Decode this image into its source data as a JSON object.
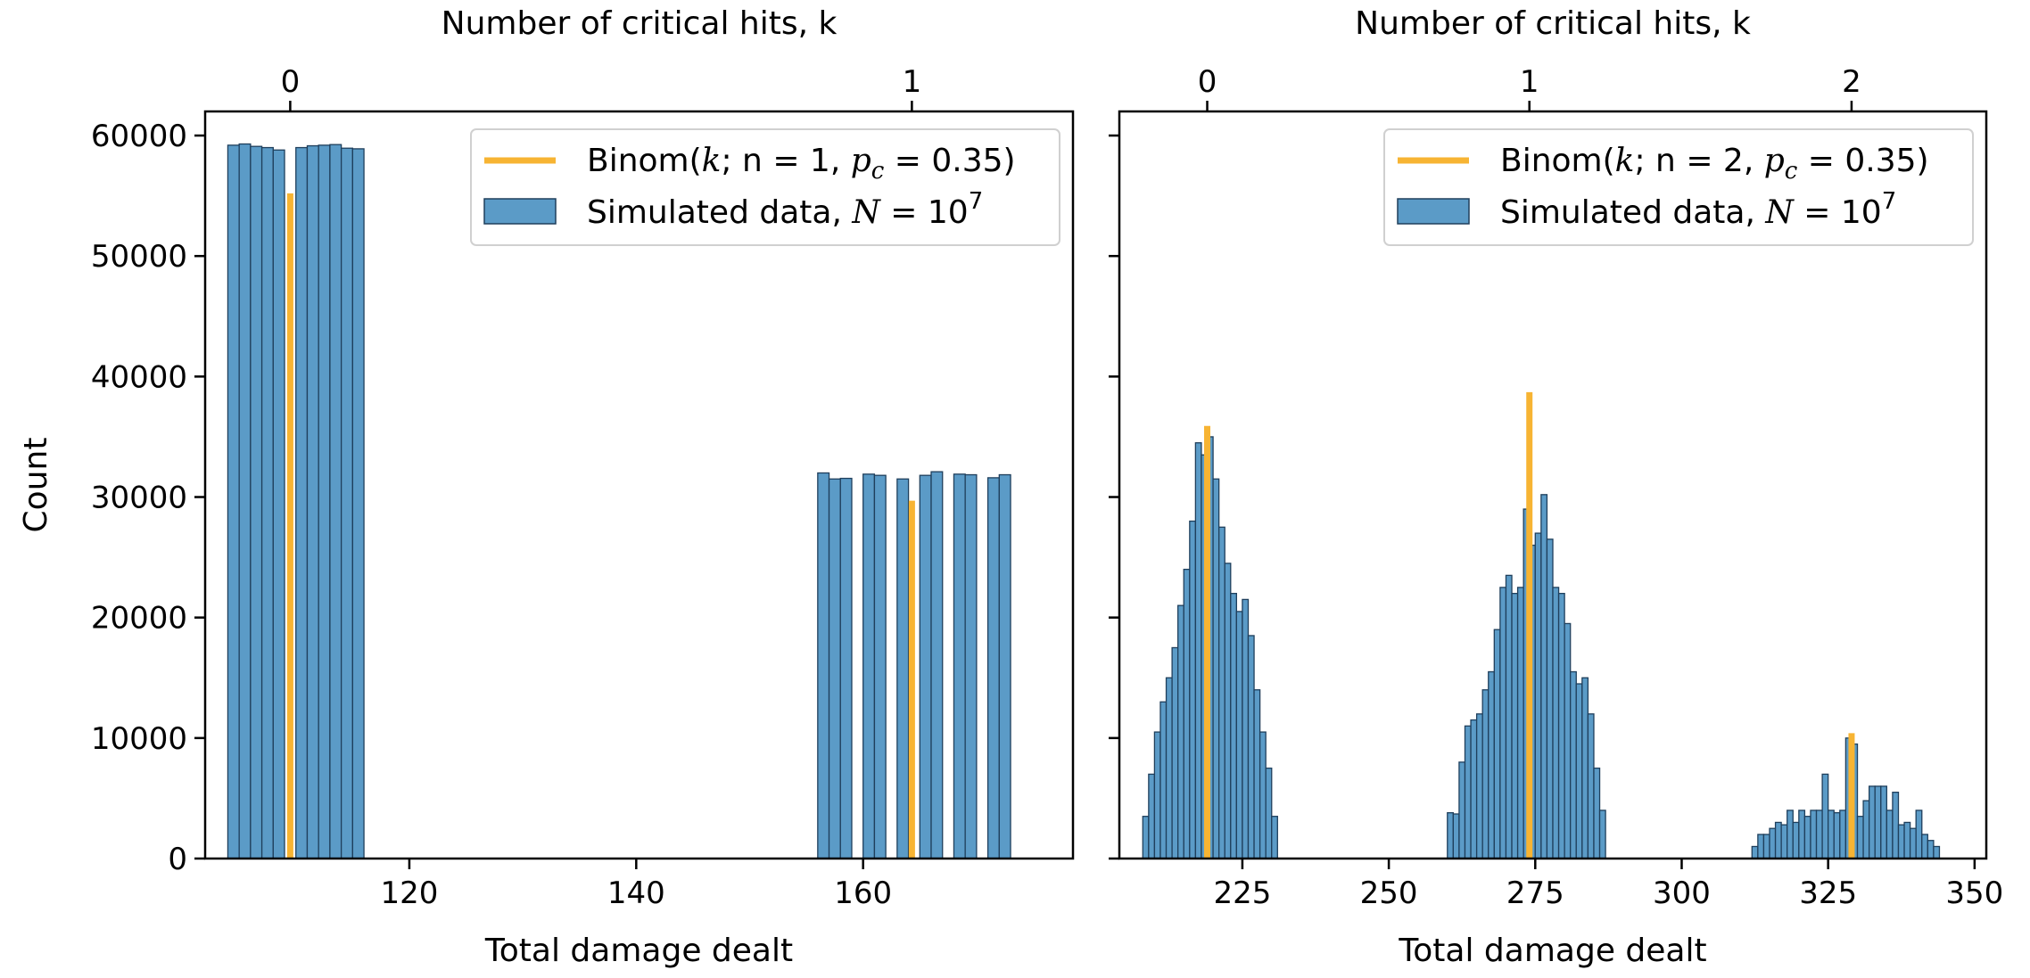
{
  "colors": {
    "hist": "#5b9bc7",
    "hist_edge": "#1f3f5c",
    "binom": "#f7b433",
    "axis": "#000000"
  },
  "chart_data": [
    {
      "type": "bar",
      "panel": "left",
      "xlabel": "Total damage dealt",
      "ylabel": "Count",
      "top_xlabel": "Number of critical hits, k",
      "xlim": [
        102,
        178.5
      ],
      "ylim": [
        0,
        62000
      ],
      "xticks": [
        120,
        140,
        160
      ],
      "yticks": [
        0,
        10000,
        20000,
        30000,
        40000,
        50000,
        60000
      ],
      "top_xticks": [
        {
          "value": 109.5,
          "label": "0"
        },
        {
          "value": 164.3,
          "label": "1"
        }
      ],
      "legend": {
        "position": "upper right",
        "binom_label": {
          "prefix": "Binom(",
          "k": "k",
          "n_part": "; n = 1, ",
          "p": "p",
          "sub": "c",
          "suffix": " = 0.35)"
        },
        "sim_label": {
          "prefix": "Simulated data, ",
          "N": "N",
          "eq": " = 10",
          "sup": "7"
        }
      },
      "bin_width": 1,
      "series": [
        {
          "name": "Simulated data",
          "bins": [
            {
              "x": 104.0,
              "y": 59200
            },
            {
              "x": 105.0,
              "y": 59300
            },
            {
              "x": 106.0,
              "y": 59100
            },
            {
              "x": 107.0,
              "y": 59000
            },
            {
              "x": 108.0,
              "y": 58800
            },
            {
              "x": 110.0,
              "y": 59000
            },
            {
              "x": 111.0,
              "y": 59150
            },
            {
              "x": 112.0,
              "y": 59200
            },
            {
              "x": 113.0,
              "y": 59250
            },
            {
              "x": 114.0,
              "y": 58950
            },
            {
              "x": 115.0,
              "y": 58900
            },
            {
              "x": 156.0,
              "y": 32000
            },
            {
              "x": 157.0,
              "y": 31500
            },
            {
              "x": 158.0,
              "y": 31550
            },
            {
              "x": 160.0,
              "y": 31900
            },
            {
              "x": 161.0,
              "y": 31800
            },
            {
              "x": 163.0,
              "y": 31500
            },
            {
              "x": 165.0,
              "y": 31800
            },
            {
              "x": 166.0,
              "y": 32100
            },
            {
              "x": 168.0,
              "y": 31900
            },
            {
              "x": 169.0,
              "y": 31850
            },
            {
              "x": 171.0,
              "y": 31600
            },
            {
              "x": 172.0,
              "y": 31850
            }
          ]
        },
        {
          "name": "Binom",
          "lines": [
            {
              "x": 109.5,
              "y": 55200
            },
            {
              "x": 164.3,
              "y": 29700
            }
          ]
        }
      ]
    },
    {
      "type": "bar",
      "panel": "right",
      "xlabel": "Total damage dealt",
      "top_xlabel": "Number of critical hits, k",
      "xlim": [
        204,
        352
      ],
      "ylim": [
        0,
        62000
      ],
      "xticks": [
        225,
        250,
        275,
        300,
        325,
        350
      ],
      "yticks": [
        0,
        10000,
        20000,
        30000,
        40000,
        50000,
        60000
      ],
      "top_xticks": [
        {
          "value": 219,
          "label": "0"
        },
        {
          "value": 274,
          "label": "1"
        },
        {
          "value": 329,
          "label": "2"
        }
      ],
      "legend": {
        "position": "upper right",
        "binom_label": {
          "prefix": "Binom(",
          "k": "k",
          "n_part": "; n = 2, ",
          "p": "p",
          "sub": "c",
          "suffix": " = 0.35)"
        },
        "sim_label": {
          "prefix": "Simulated data, ",
          "N": "N",
          "eq": " = 10",
          "sup": "7"
        }
      },
      "bin_width": 1,
      "series": [
        {
          "name": "Simulated data",
          "bins": [
            {
              "x": 208.0,
              "y": 3500
            },
            {
              "x": 209.0,
              "y": 7000
            },
            {
              "x": 210.0,
              "y": 10500
            },
            {
              "x": 211.0,
              "y": 13000
            },
            {
              "x": 212.0,
              "y": 15000
            },
            {
              "x": 213.0,
              "y": 17500
            },
            {
              "x": 214.0,
              "y": 21000
            },
            {
              "x": 215.0,
              "y": 24000
            },
            {
              "x": 216.0,
              "y": 28000
            },
            {
              "x": 217.0,
              "y": 34500
            },
            {
              "x": 218.0,
              "y": 33500
            },
            {
              "x": 219.0,
              "y": 35000
            },
            {
              "x": 220.0,
              "y": 31500
            },
            {
              "x": 221.0,
              "y": 27500
            },
            {
              "x": 222.0,
              "y": 24500
            },
            {
              "x": 223.0,
              "y": 22000
            },
            {
              "x": 224.0,
              "y": 20500
            },
            {
              "x": 225.0,
              "y": 21500
            },
            {
              "x": 226.0,
              "y": 18500
            },
            {
              "x": 227.0,
              "y": 14000
            },
            {
              "x": 228.0,
              "y": 10500
            },
            {
              "x": 229.0,
              "y": 7500
            },
            {
              "x": 230.0,
              "y": 3500
            },
            {
              "x": 260.0,
              "y": 3800
            },
            {
              "x": 261.0,
              "y": 3700
            },
            {
              "x": 262.0,
              "y": 8000
            },
            {
              "x": 263.0,
              "y": 11000
            },
            {
              "x": 264.0,
              "y": 11500
            },
            {
              "x": 265.0,
              "y": 12000
            },
            {
              "x": 266.0,
              "y": 14000
            },
            {
              "x": 267.0,
              "y": 15500
            },
            {
              "x": 268.0,
              "y": 19000
            },
            {
              "x": 269.0,
              "y": 22500
            },
            {
              "x": 270.0,
              "y": 23500
            },
            {
              "x": 271.0,
              "y": 22000
            },
            {
              "x": 272.0,
              "y": 22500
            },
            {
              "x": 273.0,
              "y": 29000
            },
            {
              "x": 274.0,
              "y": 26000
            },
            {
              "x": 275.0,
              "y": 27000
            },
            {
              "x": 276.0,
              "y": 30200
            },
            {
              "x": 277.0,
              "y": 26500
            },
            {
              "x": 278.0,
              "y": 22500
            },
            {
              "x": 279.0,
              "y": 22000
            },
            {
              "x": 280.0,
              "y": 19500
            },
            {
              "x": 281.0,
              "y": 15500
            },
            {
              "x": 282.0,
              "y": 14500
            },
            {
              "x": 283.0,
              "y": 15000
            },
            {
              "x": 284.0,
              "y": 12000
            },
            {
              "x": 285.0,
              "y": 7500
            },
            {
              "x": 286.0,
              "y": 4000
            },
            {
              "x": 312.0,
              "y": 1000
            },
            {
              "x": 313.0,
              "y": 2000
            },
            {
              "x": 314.0,
              "y": 2000
            },
            {
              "x": 315.0,
              "y": 2500
            },
            {
              "x": 316.0,
              "y": 3000
            },
            {
              "x": 317.0,
              "y": 2800
            },
            {
              "x": 318.0,
              "y": 4000
            },
            {
              "x": 319.0,
              "y": 3000
            },
            {
              "x": 320.0,
              "y": 4000
            },
            {
              "x": 321.0,
              "y": 3500
            },
            {
              "x": 322.0,
              "y": 4000
            },
            {
              "x": 323.0,
              "y": 4000
            },
            {
              "x": 324.0,
              "y": 7000
            },
            {
              "x": 325.0,
              "y": 4000
            },
            {
              "x": 326.0,
              "y": 3800
            },
            {
              "x": 327.0,
              "y": 4000
            },
            {
              "x": 328.0,
              "y": 10000
            },
            {
              "x": 329.0,
              "y": 9500
            },
            {
              "x": 330.0,
              "y": 3500
            },
            {
              "x": 331.0,
              "y": 4800
            },
            {
              "x": 332.0,
              "y": 6000
            },
            {
              "x": 333.0,
              "y": 6000
            },
            {
              "x": 334.0,
              "y": 6000
            },
            {
              "x": 335.0,
              "y": 4000
            },
            {
              "x": 336.0,
              "y": 5500
            },
            {
              "x": 337.0,
              "y": 2800
            },
            {
              "x": 338.0,
              "y": 3000
            },
            {
              "x": 339.0,
              "y": 2500
            },
            {
              "x": 340.0,
              "y": 4000
            },
            {
              "x": 341.0,
              "y": 2000
            },
            {
              "x": 342.0,
              "y": 1500
            },
            {
              "x": 343.0,
              "y": 1000
            }
          ]
        },
        {
          "name": "Binom",
          "lines": [
            {
              "x": 219,
              "y": 35900
            },
            {
              "x": 274,
              "y": 38700
            },
            {
              "x": 329,
              "y": 10400
            }
          ]
        }
      ]
    }
  ]
}
